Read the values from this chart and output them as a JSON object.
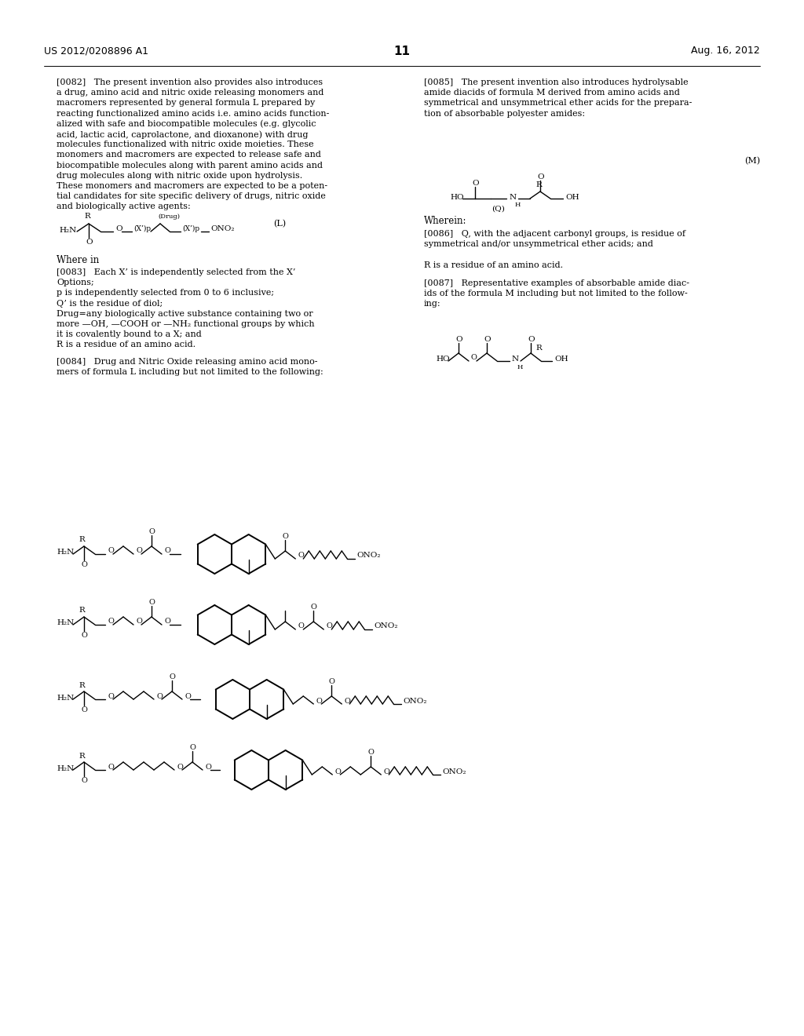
{
  "header_left": "US 2012/0208896 A1",
  "header_right": "Aug. 16, 2012",
  "page_number": "11",
  "p82_lines": [
    "[0082]   The present invention also provides also introduces",
    "a drug, amino acid and nitric oxide releasing monomers and",
    "macromers represented by general formula L prepared by",
    "reacting functionalized amino acids i.e. amino acids function-",
    "alized with safe and biocompatible molecules (e.g. glycolic",
    "acid, lactic acid, caprolactone, and dioxanone) with drug",
    "molecules functionalized with nitric oxide moieties. These",
    "monomers and macromers are expected to release safe and",
    "biocompatible molecules along with parent amino acids and",
    "drug molecules along with nitric oxide upon hydrolysis.",
    "These monomers and macromers are expected to be a poten-",
    "tial candidates for site specific delivery of drugs, nitric oxide",
    "and biologically active agents:"
  ],
  "p83_lines": [
    "[0083]   Each X’ is independently selected from the X’",
    "Options;",
    "p is independently selected from 0 to 6 inclusive;",
    "Q’ is the residue of diol;",
    "Drug=any biologically active substance containing two or",
    "more —OH, —COOH or —NH₂ functional groups by which",
    "it is covalently bound to a X; and",
    "R is a residue of an amino acid."
  ],
  "p84_lines": [
    "[0084]   Drug and Nitric Oxide releasing amino acid mono-",
    "mers of formula L including but not limited to the following:"
  ],
  "p85_lines": [
    "[0085]   The present invention also introduces hydrolysable",
    "amide diacids of formula M derived from amino acids and",
    "symmetrical and unsymmetrical ether acids for the prepara-",
    "tion of absorbable polyester amides:"
  ],
  "p86_lines": [
    "[0086]   Q, with the adjacent carbonyl groups, is residue of",
    "symmetrical and/or unsymmetrical ether acids; and",
    "",
    "R is a residue of an amino acid."
  ],
  "p87_lines": [
    "[0087]   Representative examples of absorbable amide diac-",
    "ids of the formula M including but not limited to the follow-",
    "ing:"
  ],
  "where_in": "Where in",
  "wherein": "Wherein:",
  "label_L": "(L)",
  "label_M": "(M)"
}
